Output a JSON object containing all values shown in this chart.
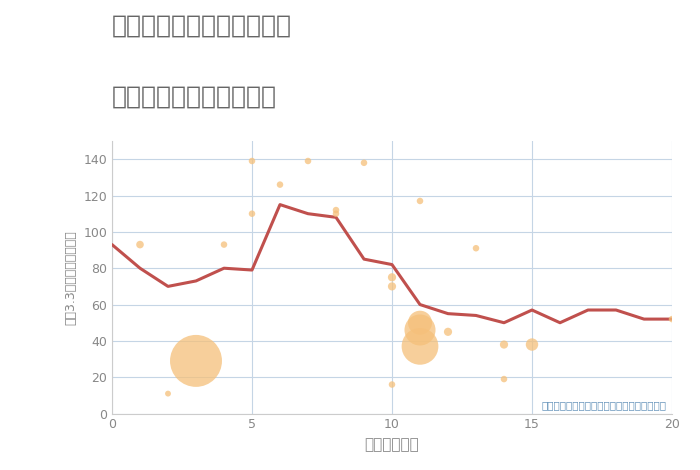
{
  "title_line1": "兵庫県神戸市垂水区中道の",
  "title_line2": "駅距離別中古戸建て価格",
  "xlabel": "駅距離（分）",
  "ylabel": "坪（3.3㎡）単価（万円）",
  "fig_bg_color": "#ffffff",
  "plot_bg_color": "#ffffff",
  "line_color": "#c0504d",
  "scatter_color": "#f5c07a",
  "scatter_alpha": 0.75,
  "grid_color": "#c5d5e5",
  "annotation_text": "円の大きさは、取引のあった物件面積を示す",
  "annotation_color": "#6090b8",
  "title_color": "#666666",
  "axis_color": "#888888",
  "xlim": [
    0,
    20
  ],
  "ylim": [
    0,
    150
  ],
  "xticks": [
    0,
    5,
    10,
    15,
    20
  ],
  "yticks": [
    0,
    20,
    40,
    60,
    80,
    100,
    120,
    140
  ],
  "line_x": [
    0,
    1,
    2,
    3,
    4,
    5,
    6,
    7,
    8,
    9,
    10,
    11,
    12,
    13,
    14,
    15,
    16,
    17,
    18,
    19,
    20
  ],
  "line_y": [
    93,
    80,
    70,
    73,
    80,
    79,
    115,
    110,
    108,
    85,
    82,
    60,
    55,
    54,
    50,
    57,
    50,
    57,
    57,
    52,
    52
  ],
  "scatter_x": [
    1,
    2,
    3,
    4,
    5,
    5,
    6,
    7,
    8,
    8,
    9,
    10,
    10,
    10,
    11,
    11,
    11,
    11,
    12,
    13,
    14,
    14,
    15,
    20
  ],
  "scatter_y": [
    93,
    11,
    29,
    93,
    110,
    139,
    126,
    139,
    112,
    110,
    138,
    75,
    70,
    16,
    50,
    46,
    37,
    117,
    45,
    91,
    19,
    38,
    38,
    52
  ],
  "scatter_size": [
    30,
    18,
    1400,
    22,
    22,
    22,
    22,
    22,
    22,
    22,
    22,
    35,
    35,
    22,
    300,
    500,
    700,
    22,
    35,
    22,
    22,
    35,
    80,
    22
  ]
}
